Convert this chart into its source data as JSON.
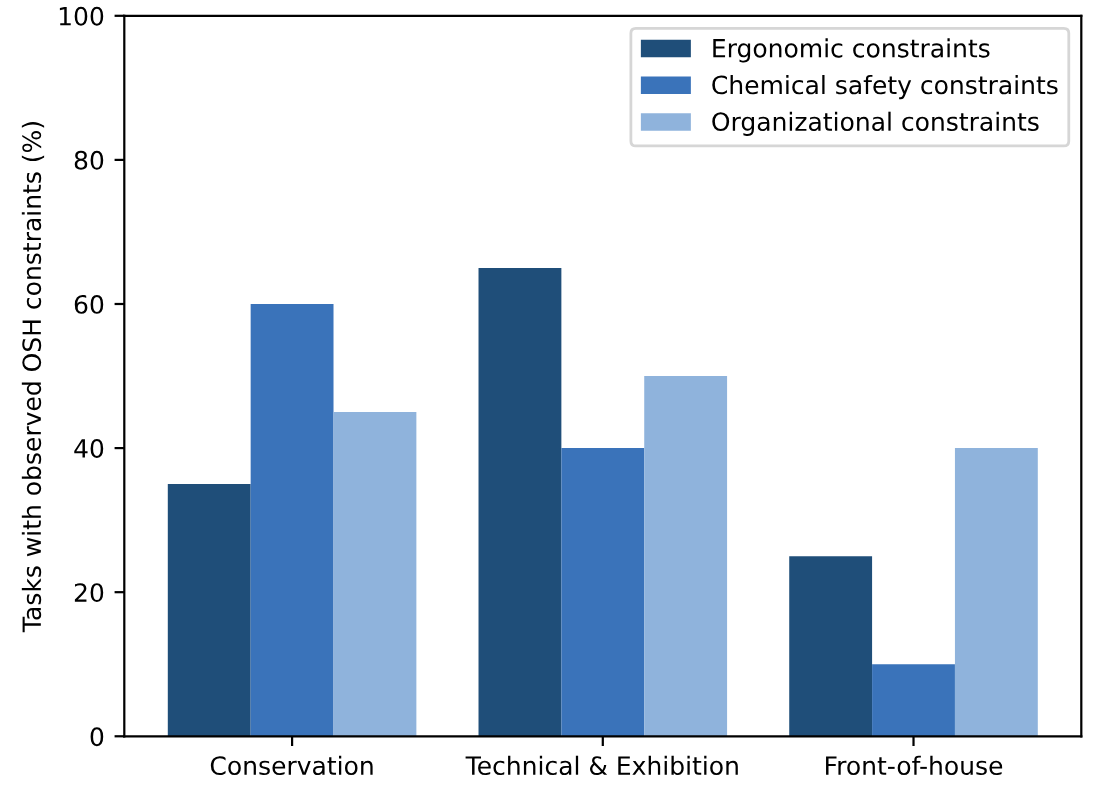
{
  "chart_data": {
    "type": "bar",
    "ylabel": "Tasks with observed OSH constraints (%)",
    "categories": [
      "Conservation",
      "Technical & Exhibition",
      "Front-of-house"
    ],
    "series": [
      {
        "name": "Ergonomic constraints",
        "color": "#1f4e79",
        "values": [
          35,
          65,
          25
        ]
      },
      {
        "name": "Chemical safety constraints",
        "color": "#3a73ba",
        "values": [
          60,
          40,
          10
        ]
      },
      {
        "name": "Organizational constraints",
        "color": "#8fb3dc",
        "values": [
          45,
          50,
          40
        ]
      }
    ],
    "ylim": [
      0,
      100
    ],
    "yticks": [
      0,
      20,
      40,
      60,
      80,
      100
    ],
    "grid": false,
    "legend": "top right"
  }
}
